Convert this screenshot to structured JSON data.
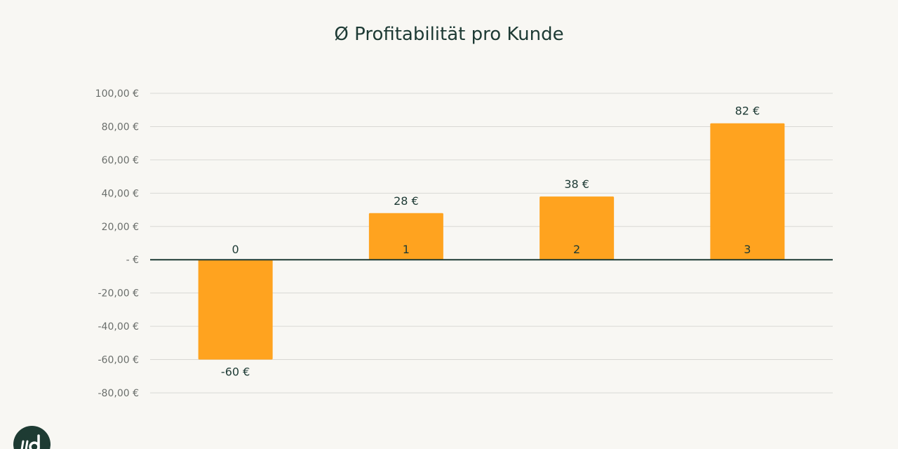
{
  "chart_data": {
    "type": "bar",
    "title": "Ø Profitabilität pro Kunde",
    "xlabel": "",
    "ylabel": "",
    "categories": [
      "0",
      "1",
      "2",
      "3"
    ],
    "values": [
      -60,
      28,
      38,
      82
    ],
    "data_labels": [
      "-60 €",
      "28 €",
      "38 €",
      "82 €"
    ],
    "ylim": [
      -80,
      100
    ],
    "y_ticks": [
      100,
      80,
      60,
      40,
      20,
      0,
      -20,
      -40,
      -60,
      -80
    ],
    "y_tick_labels": [
      "100,00 €",
      "80,00 €",
      "60,00 €",
      "40,00 €",
      "20,00 €",
      "- €",
      "-20,00 €",
      "-40,00 €",
      "-60,00 €",
      "-80,00 €"
    ],
    "grid": true,
    "legend": "none",
    "bar_color": "#ffa31f",
    "zero_line_color": "#1d3a34"
  },
  "logo": {
    "icon": "brand-logo-icon",
    "color": "#1e3b33"
  }
}
